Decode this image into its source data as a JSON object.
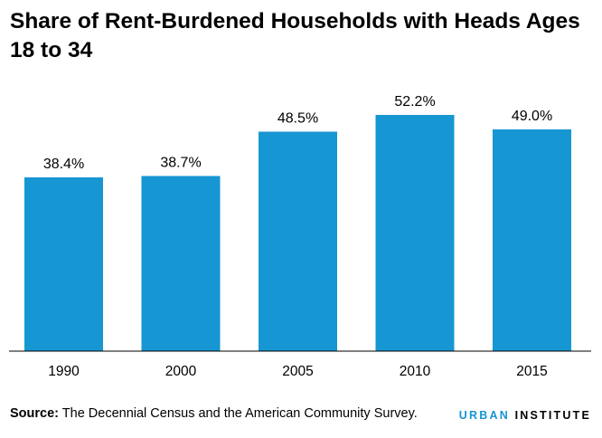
{
  "chart_data": {
    "type": "bar",
    "title": "Share of Rent-Burdened Households with Heads Ages 18 to 34",
    "categories": [
      "1990",
      "2000",
      "2005",
      "2010",
      "2015"
    ],
    "values": [
      38.4,
      38.7,
      48.5,
      52.2,
      49.0
    ],
    "data_labels": [
      "38.4%",
      "38.7%",
      "48.5%",
      "52.2%",
      "49.0%"
    ],
    "xlabel": "",
    "ylabel": "",
    "ylim": [
      0,
      60
    ],
    "grid": false,
    "bar_color": "#1696d2"
  },
  "source": {
    "label": "Source:",
    "text": " The Decennial Census and the American Community Survey."
  },
  "logo": {
    "urban": "URBAN",
    "institute": "INSTITUTE"
  }
}
